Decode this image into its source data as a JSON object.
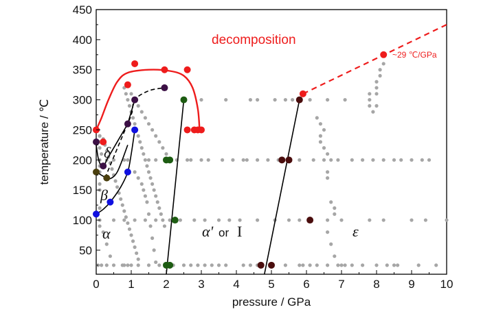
{
  "chart_data": {
    "type": "scatter",
    "xlabel": "pressure / GPa",
    "ylabel": "temperature / ℃",
    "xlim": [
      0,
      10
    ],
    "ylim": [
      10,
      450
    ],
    "x_ticks": [
      "0",
      "1",
      "2",
      "3",
      "4",
      "5",
      "6",
      "7",
      "8",
      "9",
      "10"
    ],
    "y_ticks": [
      "50",
      "100",
      "150",
      "200",
      "250",
      "300",
      "350",
      "400",
      "450"
    ],
    "colors": {
      "grey": "#a6a6a6",
      "red": "#ee1c1c",
      "purple": "#3c1045",
      "blue": "#1010e0",
      "olive": "#4a3f0e",
      "green": "#1d5c12",
      "brown": "#4a0d0d",
      "line": "#000000"
    },
    "annotations": {
      "decomposition": "decomposition",
      "slope": "~29 ℃/GPa",
      "alpha": "α",
      "beta": "β",
      "delta": "δ",
      "alpha_prime": "α'",
      "or": "or",
      "roman_one": "I",
      "epsilon": "ε"
    },
    "grey_points": [
      [
        0.05,
        250
      ],
      [
        0.1,
        240
      ],
      [
        0.2,
        235
      ],
      [
        0.25,
        225
      ],
      [
        0.3,
        215
      ],
      [
        0.35,
        205
      ],
      [
        0.4,
        195
      ],
      [
        0.45,
        185
      ],
      [
        0.5,
        175
      ],
      [
        0.55,
        165
      ],
      [
        0.6,
        155
      ],
      [
        0.65,
        145
      ],
      [
        0.7,
        135
      ],
      [
        0.75,
        125
      ],
      [
        0.8,
        115
      ],
      [
        0.85,
        105
      ],
      [
        0.9,
        95
      ],
      [
        0.95,
        85
      ],
      [
        1.0,
        75
      ],
      [
        1.05,
        65
      ],
      [
        1.1,
        55
      ],
      [
        1.15,
        45
      ],
      [
        1.2,
        35
      ],
      [
        0.8,
        320
      ],
      [
        0.85,
        310
      ],
      [
        0.9,
        300
      ],
      [
        0.95,
        290
      ],
      [
        1.0,
        280
      ],
      [
        1.05,
        270
      ],
      [
        1.1,
        260
      ],
      [
        1.15,
        250
      ],
      [
        1.2,
        240
      ],
      [
        1.25,
        230
      ],
      [
        1.3,
        220
      ],
      [
        1.35,
        210
      ],
      [
        1.4,
        200
      ],
      [
        1.45,
        190
      ],
      [
        1.5,
        180
      ],
      [
        1.55,
        170
      ],
      [
        1.6,
        160
      ],
      [
        1.65,
        150
      ],
      [
        1.7,
        140
      ],
      [
        1.75,
        130
      ],
      [
        1.8,
        120
      ],
      [
        1.85,
        110
      ],
      [
        1.9,
        100
      ],
      [
        1.95,
        90
      ],
      [
        1.0,
        310
      ],
      [
        1.1,
        300
      ],
      [
        1.2,
        290
      ],
      [
        1.3,
        280
      ],
      [
        1.4,
        270
      ],
      [
        1.5,
        260
      ],
      [
        1.6,
        250
      ],
      [
        1.7,
        240
      ],
      [
        1.8,
        230
      ],
      [
        1.9,
        220
      ],
      [
        2.0,
        210
      ],
      [
        0.9,
        200
      ],
      [
        1.1,
        180
      ],
      [
        1.2,
        170
      ],
      [
        1.3,
        160
      ],
      [
        1.35,
        150
      ],
      [
        1.4,
        140
      ],
      [
        1.45,
        130
      ],
      [
        1.5,
        110
      ],
      [
        1.55,
        90
      ],
      [
        1.6,
        70
      ],
      [
        1.65,
        50
      ],
      [
        1.7,
        30
      ],
      [
        0.1,
        200
      ],
      [
        0.3,
        200
      ],
      [
        0.5,
        200
      ],
      [
        0.8,
        200
      ],
      [
        1.5,
        200
      ],
      [
        1.7,
        200
      ],
      [
        2.3,
        200
      ],
      [
        2.6,
        200
      ],
      [
        2.7,
        200
      ],
      [
        3.0,
        200
      ],
      [
        3.2,
        200
      ],
      [
        3.6,
        200
      ],
      [
        3.9,
        200
      ],
      [
        4.2,
        200
      ],
      [
        4.3,
        200
      ],
      [
        4.6,
        200
      ],
      [
        4.9,
        200
      ],
      [
        5.2,
        200
      ],
      [
        5.8,
        200
      ],
      [
        6.2,
        200
      ],
      [
        6.5,
        200
      ],
      [
        6.7,
        200
      ],
      [
        6.9,
        200
      ],
      [
        7.3,
        200
      ],
      [
        7.6,
        200
      ],
      [
        7.9,
        200
      ],
      [
        8.2,
        200
      ],
      [
        8.5,
        200
      ],
      [
        8.7,
        200
      ],
      [
        9.0,
        200
      ],
      [
        9.3,
        200
      ],
      [
        9.5,
        200
      ],
      [
        0.1,
        100
      ],
      [
        0.5,
        100
      ],
      [
        0.8,
        100
      ],
      [
        1.1,
        100
      ],
      [
        1.4,
        100
      ],
      [
        1.7,
        100
      ],
      [
        2.1,
        100
      ],
      [
        2.4,
        100
      ],
      [
        2.8,
        100
      ],
      [
        3.1,
        100
      ],
      [
        3.5,
        100
      ],
      [
        3.8,
        100
      ],
      [
        4.1,
        100
      ],
      [
        4.6,
        100
      ],
      [
        5.1,
        100
      ],
      [
        5.5,
        100
      ],
      [
        5.8,
        100
      ],
      [
        6.6,
        100
      ],
      [
        7.0,
        100
      ],
      [
        7.8,
        100
      ],
      [
        8.2,
        100
      ],
      [
        9.0,
        100
      ],
      [
        9.4,
        100
      ],
      [
        10.0,
        100
      ],
      [
        0.05,
        25
      ],
      [
        0.15,
        25
      ],
      [
        0.3,
        25
      ],
      [
        0.5,
        25
      ],
      [
        0.75,
        25
      ],
      [
        0.8,
        25
      ],
      [
        0.9,
        25
      ],
      [
        1.0,
        25
      ],
      [
        1.2,
        25
      ],
      [
        1.5,
        25
      ],
      [
        1.8,
        25
      ],
      [
        2.2,
        25
      ],
      [
        2.5,
        25
      ],
      [
        2.7,
        25
      ],
      [
        2.9,
        25
      ],
      [
        3.1,
        25
      ],
      [
        3.3,
        25
      ],
      [
        3.5,
        25
      ],
      [
        3.7,
        25
      ],
      [
        4.2,
        25
      ],
      [
        4.4,
        25
      ],
      [
        4.6,
        25
      ],
      [
        5.4,
        25
      ],
      [
        5.8,
        25
      ],
      [
        5.9,
        25
      ],
      [
        6.1,
        25
      ],
      [
        6.3,
        25
      ],
      [
        6.6,
        25
      ],
      [
        6.9,
        25
      ],
      [
        7.0,
        25
      ],
      [
        7.1,
        25
      ],
      [
        7.3,
        25
      ],
      [
        7.6,
        25
      ],
      [
        8.0,
        25
      ],
      [
        8.3,
        25
      ],
      [
        8.5,
        25
      ],
      [
        8.6,
        25
      ],
      [
        9.2,
        25
      ],
      [
        9.7,
        25
      ],
      [
        4.4,
        300
      ],
      [
        4.6,
        300
      ],
      [
        5.1,
        300
      ],
      [
        5.4,
        300
      ],
      [
        5.6,
        300
      ],
      [
        6.1,
        300
      ],
      [
        6.6,
        300
      ],
      [
        7.1,
        300
      ],
      [
        7.8,
        300
      ],
      [
        3.0,
        300
      ],
      [
        3.7,
        300
      ],
      [
        7.8,
        310
      ],
      [
        7.8,
        290
      ],
      [
        7.9,
        280
      ],
      [
        8.0,
        330
      ],
      [
        8.0,
        320
      ],
      [
        8.0,
        310
      ],
      [
        8.0,
        290
      ],
      [
        8.1,
        340
      ],
      [
        8.1,
        350
      ],
      [
        8.2,
        360
      ],
      [
        6.4,
        230
      ],
      [
        6.4,
        240
      ],
      [
        6.5,
        220
      ],
      [
        6.6,
        210
      ],
      [
        6.6,
        180
      ],
      [
        6.6,
        170
      ],
      [
        6.7,
        130
      ],
      [
        6.8,
        120
      ],
      [
        6.8,
        110
      ],
      [
        6.6,
        80
      ],
      [
        6.7,
        60
      ],
      [
        6.8,
        40
      ],
      [
        6.3,
        270
      ],
      [
        6.4,
        260
      ],
      [
        6.5,
        250
      ],
      [
        0.1,
        240
      ],
      [
        0.1,
        230
      ],
      [
        0.1,
        220
      ],
      [
        0.15,
        210
      ],
      [
        0.1,
        190
      ],
      [
        0.1,
        180
      ],
      [
        0.1,
        160
      ],
      [
        0.1,
        150
      ],
      [
        0.1,
        120
      ],
      [
        0.1,
        90
      ],
      [
        0.2,
        80
      ],
      [
        0.3,
        60
      ],
      [
        0.4,
        40
      ]
    ],
    "red_points": [
      [
        0.0,
        250
      ],
      [
        0.2,
        230
      ],
      [
        1.1,
        360
      ],
      [
        0.9,
        325
      ],
      [
        1.95,
        350
      ],
      [
        2.6,
        350
      ],
      [
        2.6,
        250
      ],
      [
        2.8,
        250
      ],
      [
        2.9,
        250
      ],
      [
        3.0,
        250
      ],
      [
        5.9,
        310
      ],
      [
        8.2,
        375
      ]
    ],
    "purple_points": [
      [
        0.0,
        230
      ],
      [
        0.9,
        260
      ],
      [
        1.1,
        300
      ],
      [
        1.95,
        320
      ],
      [
        0.2,
        190
      ]
    ],
    "blue_points": [
      [
        1.1,
        250
      ],
      [
        0.9,
        180
      ],
      [
        0.4,
        130
      ],
      [
        0.0,
        110
      ]
    ],
    "olive_points": [
      [
        0.0,
        180
      ],
      [
        0.3,
        170
      ]
    ],
    "green_points": [
      [
        2.0,
        200
      ],
      [
        2.1,
        200
      ],
      [
        2.5,
        300
      ],
      [
        2.25,
        100
      ],
      [
        2.0,
        25
      ],
      [
        2.1,
        25
      ]
    ],
    "brown_points": [
      [
        5.8,
        300
      ],
      [
        5.3,
        200
      ],
      [
        5.5,
        200
      ],
      [
        6.1,
        100
      ],
      [
        4.7,
        25
      ],
      [
        5.0,
        25
      ]
    ],
    "red_curve": [
      [
        0.0,
        250
      ],
      [
        0.15,
        270
      ],
      [
        0.35,
        300
      ],
      [
        0.6,
        330
      ],
      [
        0.9,
        345
      ],
      [
        1.5,
        350
      ],
      [
        2.1,
        348
      ],
      [
        2.5,
        340
      ],
      [
        2.75,
        320
      ],
      [
        2.9,
        285
      ],
      [
        2.95,
        250
      ]
    ],
    "red_extrapolation": [
      [
        5.9,
        310
      ],
      [
        10.0,
        425
      ]
    ],
    "solid_curves": [
      [
        [
          0.0,
          225
        ],
        [
          0.05,
          205
        ],
        [
          0.1,
          195
        ],
        [
          0.2,
          187
        ],
        [
          0.3,
          200
        ],
        [
          0.45,
          215
        ],
        [
          0.7,
          240
        ],
        [
          0.9,
          260
        ]
      ],
      [
        [
          0.9,
          260
        ],
        [
          1.1,
          300
        ]
      ],
      [
        [
          0.0,
          110
        ],
        [
          0.2,
          118
        ],
        [
          0.4,
          130
        ],
        [
          0.7,
          155
        ],
        [
          0.9,
          180
        ],
        [
          1.0,
          210
        ],
        [
          1.1,
          250
        ]
      ],
      [
        [
          0.0,
          180
        ],
        [
          0.2,
          173
        ],
        [
          0.35,
          168
        ],
        [
          0.6,
          180
        ],
        [
          0.9,
          225
        ]
      ],
      [
        [
          2.0,
          10
        ],
        [
          2.5,
          300
        ]
      ],
      [
        [
          4.8,
          10
        ],
        [
          5.8,
          300
        ]
      ]
    ],
    "dashed_curves": [
      [
        [
          0.25,
          170
        ],
        [
          0.5,
          205
        ],
        [
          0.75,
          240
        ],
        [
          1.0,
          275
        ],
        [
          1.1,
          300
        ],
        [
          1.5,
          315
        ],
        [
          1.95,
          320
        ]
      ]
    ]
  }
}
